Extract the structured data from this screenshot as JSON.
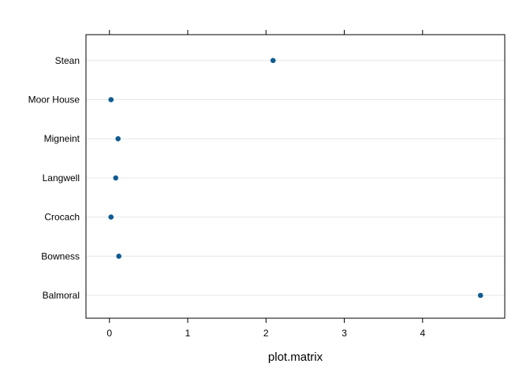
{
  "chart_data": {
    "type": "scatter",
    "subtype": "dotplot",
    "title": "",
    "xlabel": "plot.matrix",
    "ylabel": "",
    "categories": [
      "Balmoral",
      "Bowness",
      "Crocach",
      "Langwell",
      "Migneint",
      "Moor House",
      "Stean"
    ],
    "values": [
      4.74,
      0.12,
      0.02,
      0.08,
      0.11,
      0.02,
      2.09
    ],
    "xlim": [
      -0.3,
      5.05
    ],
    "x_ticks": [
      0,
      1,
      2,
      3,
      4
    ],
    "x_tick_labels": [
      "0",
      "1",
      "2",
      "3",
      "4"
    ],
    "grid": "horizontal reference lines per category",
    "ticks_on_top_axis": true,
    "legend": "none",
    "colors": {
      "point": "#0f5b93",
      "reference_line": "#e6e6e6",
      "frame": "#000000"
    }
  }
}
